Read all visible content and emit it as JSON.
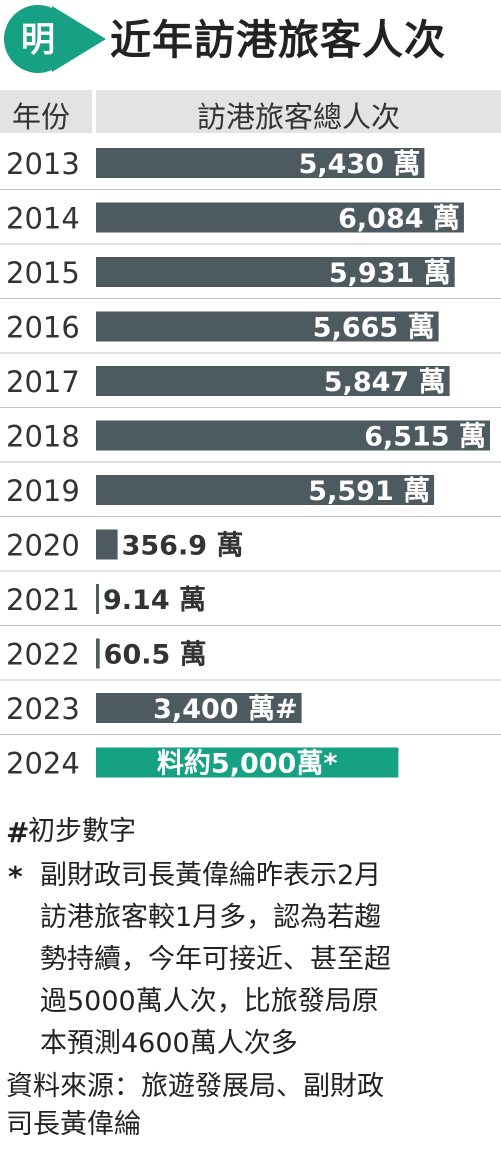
{
  "header": {
    "logo_char": "明",
    "title": "近年訪港旅客人次"
  },
  "table_header": {
    "year_col": "年份",
    "value_col": "訪港旅客總人次"
  },
  "chart_data": {
    "type": "bar",
    "orientation": "horizontal",
    "title": "近年訪港旅客人次",
    "xlabel": "訪港旅客總人次",
    "ylabel": "年份",
    "unit": "萬",
    "categories": [
      "2013",
      "2014",
      "2015",
      "2016",
      "2017",
      "2018",
      "2019",
      "2020",
      "2021",
      "2022",
      "2023",
      "2024"
    ],
    "values": [
      5430,
      6084,
      5931,
      5665,
      5847,
      6515,
      5591,
      356.9,
      9.14,
      60.5,
      3400,
      5000
    ],
    "labels": [
      "5,430 萬",
      "6,084 萬",
      "5,931 萬",
      "5,665 萬",
      "5,847 萬",
      "6,515 萬",
      "5,591 萬",
      "356.9 萬",
      "9.14 萬",
      "60.5 萬",
      "3,400 萬#",
      "料約5,000萬*"
    ],
    "colors": {
      "normal": "#4d5a5f",
      "forecast": "#16a184",
      "label_inside": "#ffffff",
      "label_outside": "#333333"
    },
    "highlight_index": 11
  },
  "notes": {
    "hash_mark": "#",
    "hash_text": "初步數字",
    "star_mark": "*",
    "star_lines": [
      "副財政司長黃偉綸昨表示2月",
      "訪港旅客較1月多，認為若趨",
      "勢持續，今年可接近、甚至超",
      "過5000萬人次，比旅發局原",
      "本預測4600萬人次多"
    ],
    "source_lines": [
      "資料來源：旅遊發展局、副財政",
      "司長黃偉綸"
    ]
  }
}
